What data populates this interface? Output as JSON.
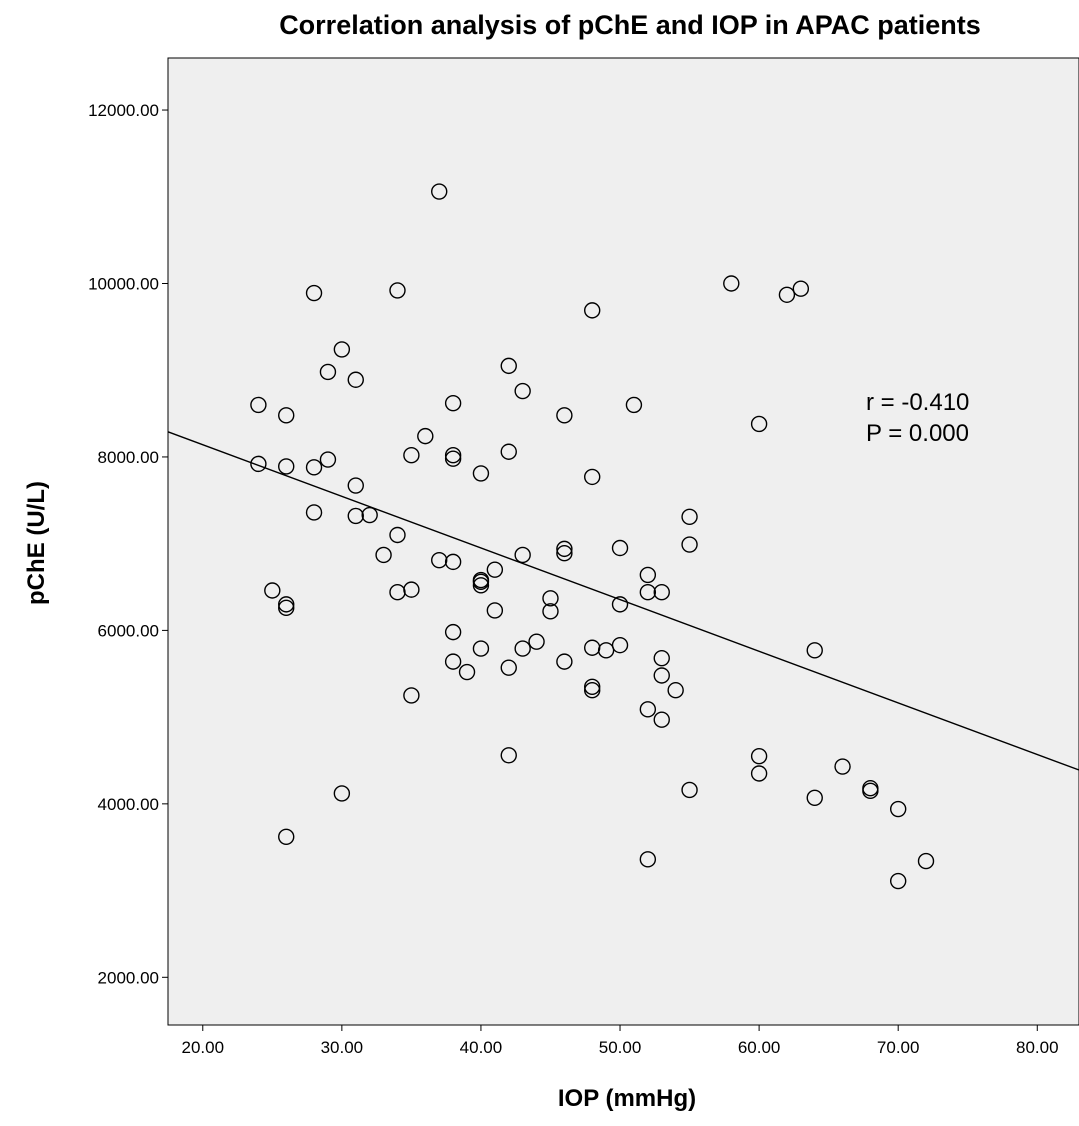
{
  "chart_data": {
    "type": "scatter",
    "title": "Correlation analysis of pChE and IOP in APAC patients",
    "xlabel": "IOP (mmHg)",
    "ylabel": "pChE (U/L)",
    "xlim": [
      17.5,
      83
    ],
    "ylim": [
      1450,
      12600
    ],
    "x_ticks": [
      20,
      30,
      40,
      50,
      60,
      70,
      80
    ],
    "y_ticks": [
      2000,
      4000,
      6000,
      8000,
      10000,
      12000
    ],
    "x_tick_labels": [
      "20.00",
      "30.00",
      "40.00",
      "50.00",
      "60.00",
      "70.00",
      "80.00"
    ],
    "y_tick_labels": [
      "2000.00",
      "4000.00",
      "6000.00",
      "8000.00",
      "10000.00",
      "12000.00"
    ],
    "grid": false,
    "background": "#efefef",
    "marker": "open-circle",
    "annotations": [
      "r = -0.410",
      "P = 0.000"
    ],
    "fit_line": {
      "x": [
        17.5,
        83
      ],
      "y": [
        8290,
        4390
      ]
    },
    "points": [
      [
        24,
        8600
      ],
      [
        24,
        7920
      ],
      [
        25,
        6460
      ],
      [
        26,
        8480
      ],
      [
        26,
        7890
      ],
      [
        26,
        6300
      ],
      [
        26,
        6260
      ],
      [
        26,
        3620
      ],
      [
        28,
        9890
      ],
      [
        28,
        7880
      ],
      [
        28,
        7360
      ],
      [
        29,
        8980
      ],
      [
        29,
        7970
      ],
      [
        30,
        9240
      ],
      [
        30,
        4120
      ],
      [
        31,
        8890
      ],
      [
        31,
        7670
      ],
      [
        31,
        7320
      ],
      [
        32,
        7330
      ],
      [
        33,
        6870
      ],
      [
        34,
        9920
      ],
      [
        34,
        7100
      ],
      [
        34,
        6440
      ],
      [
        35,
        8020
      ],
      [
        35,
        6470
      ],
      [
        35,
        5250
      ],
      [
        36,
        8240
      ],
      [
        37,
        11060
      ],
      [
        37,
        6810
      ],
      [
        38,
        8620
      ],
      [
        38,
        8020
      ],
      [
        38,
        7980
      ],
      [
        38,
        6790
      ],
      [
        38,
        5980
      ],
      [
        38,
        5640
      ],
      [
        39,
        5520
      ],
      [
        40,
        7810
      ],
      [
        40,
        6580
      ],
      [
        40,
        6560
      ],
      [
        40,
        6520
      ],
      [
        40,
        5790
      ],
      [
        41,
        6700
      ],
      [
        41,
        6230
      ],
      [
        42,
        9050
      ],
      [
        42,
        8060
      ],
      [
        42,
        5570
      ],
      [
        42,
        4560
      ],
      [
        43,
        8760
      ],
      [
        43,
        6870
      ],
      [
        43,
        5790
      ],
      [
        44,
        5870
      ],
      [
        45,
        6370
      ],
      [
        45,
        6220
      ],
      [
        46,
        8480
      ],
      [
        46,
        6940
      ],
      [
        46,
        6890
      ],
      [
        46,
        5640
      ],
      [
        48,
        9690
      ],
      [
        48,
        7770
      ],
      [
        48,
        5800
      ],
      [
        48,
        5350
      ],
      [
        48,
        5310
      ],
      [
        49,
        5770
      ],
      [
        50,
        6950
      ],
      [
        50,
        6300
      ],
      [
        50,
        5830
      ],
      [
        51,
        8600
      ],
      [
        52,
        6640
      ],
      [
        52,
        6440
      ],
      [
        52,
        5090
      ],
      [
        52,
        3360
      ],
      [
        53,
        6440
      ],
      [
        53,
        5680
      ],
      [
        53,
        5480
      ],
      [
        53,
        4970
      ],
      [
        54,
        5310
      ],
      [
        55,
        7310
      ],
      [
        55,
        6990
      ],
      [
        55,
        4160
      ],
      [
        58,
        10000
      ],
      [
        60,
        8380
      ],
      [
        60,
        4550
      ],
      [
        60,
        4350
      ],
      [
        62,
        9870
      ],
      [
        63,
        9940
      ],
      [
        64,
        5770
      ],
      [
        64,
        4070
      ],
      [
        66,
        4430
      ],
      [
        68,
        4180
      ],
      [
        68,
        4150
      ],
      [
        70,
        3940
      ],
      [
        70,
        3110
      ],
      [
        72,
        3340
      ]
    ]
  }
}
